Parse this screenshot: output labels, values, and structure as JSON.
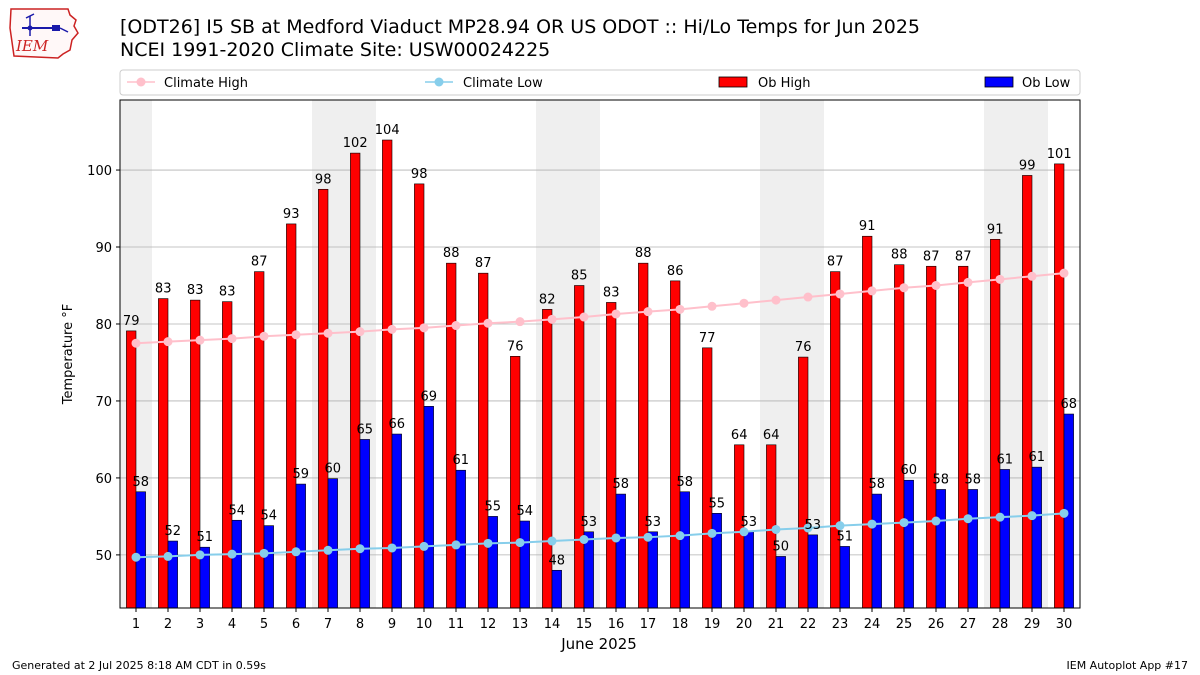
{
  "logo": {
    "text": "IEM"
  },
  "title": {
    "line1": "[ODT26] I5 SB at Medford Viaduct MP28.94 OR US ODOT :: Hi/Lo Temps for Jun 2025",
    "line2": "NCEI 1991-2020 Climate Site: USW00024225"
  },
  "footer": {
    "left": "Generated at 2 Jul 2025 8:18 AM CDT in 0.59s",
    "right": "IEM Autoplot App #17"
  },
  "chart_data": {
    "type": "bar",
    "xlabel": "June 2025",
    "ylabel": "Temperature °F",
    "ylim": [
      43.1,
      109.1
    ],
    "yticks": [
      50,
      60,
      70,
      80,
      90,
      100
    ],
    "grid": true,
    "legend_position": "top",
    "categories": [
      "1",
      "2",
      "3",
      "4",
      "5",
      "6",
      "7",
      "8",
      "9",
      "10",
      "11",
      "12",
      "13",
      "14",
      "15",
      "16",
      "17",
      "18",
      "19",
      "20",
      "21",
      "22",
      "23",
      "24",
      "25",
      "26",
      "27",
      "28",
      "29",
      "30"
    ],
    "weekend_shading": [
      1,
      7,
      8,
      14,
      15,
      21,
      22,
      28,
      29
    ],
    "series": [
      {
        "name": "Ob High",
        "kind": "bar",
        "color": "#ff0000",
        "values": [
          79.1,
          83.3,
          83.1,
          82.9,
          86.8,
          93.0,
          97.5,
          102.2,
          103.9,
          98.2,
          87.9,
          86.6,
          75.8,
          81.9,
          85.0,
          82.8,
          87.9,
          85.6,
          76.9,
          64.3,
          64.3,
          75.7,
          86.8,
          91.4,
          87.7,
          87.5,
          87.5,
          91.0,
          99.3,
          100.8
        ],
        "labels": [
          "79",
          "83",
          "83",
          "83",
          "87",
          "93",
          "98",
          "102",
          "104",
          "98",
          "88",
          "87",
          "76",
          "82",
          "85",
          "83",
          "88",
          "86",
          "77",
          "64",
          "64",
          "76",
          "87",
          "91",
          "88",
          "87",
          "87",
          "91",
          "99",
          "101"
        ]
      },
      {
        "name": "Ob Low",
        "kind": "bar",
        "color": "#0000ff",
        "values": [
          58.2,
          51.8,
          51.0,
          54.5,
          53.8,
          59.2,
          59.9,
          65.0,
          65.7,
          69.3,
          61.0,
          55.0,
          54.4,
          48.0,
          53.0,
          57.9,
          53.0,
          58.2,
          55.4,
          53.0,
          49.8,
          52.6,
          51.1,
          57.9,
          59.7,
          58.5,
          58.5,
          61.1,
          61.4,
          68.3
        ],
        "labels": [
          "58",
          "52",
          "51",
          "54",
          "54",
          "59",
          "60",
          "65",
          "66",
          "69",
          "61",
          "55",
          "54",
          "48",
          "53",
          "58",
          "53",
          "58",
          "55",
          "53",
          "50",
          "53",
          "51",
          "58",
          "60",
          "58",
          "58",
          "61",
          "61",
          "68"
        ]
      },
      {
        "name": "Climate High",
        "kind": "line",
        "color": "#ffc0cb",
        "values": [
          77.5,
          77.7,
          77.9,
          78.1,
          78.4,
          78.6,
          78.8,
          79.0,
          79.3,
          79.5,
          79.8,
          80.1,
          80.3,
          80.6,
          80.9,
          81.3,
          81.6,
          81.9,
          82.3,
          82.7,
          83.1,
          83.5,
          83.9,
          84.3,
          84.7,
          85.0,
          85.4,
          85.8,
          86.2,
          86.6
        ]
      },
      {
        "name": "Climate Low",
        "kind": "line",
        "color": "#87ceeb",
        "values": [
          49.7,
          49.8,
          50.0,
          50.1,
          50.2,
          50.4,
          50.6,
          50.8,
          50.9,
          51.1,
          51.3,
          51.5,
          51.6,
          51.8,
          52.0,
          52.2,
          52.3,
          52.5,
          52.8,
          53.0,
          53.3,
          53.5,
          53.8,
          54.0,
          54.2,
          54.4,
          54.7,
          54.9,
          55.1,
          55.4
        ]
      }
    ]
  }
}
